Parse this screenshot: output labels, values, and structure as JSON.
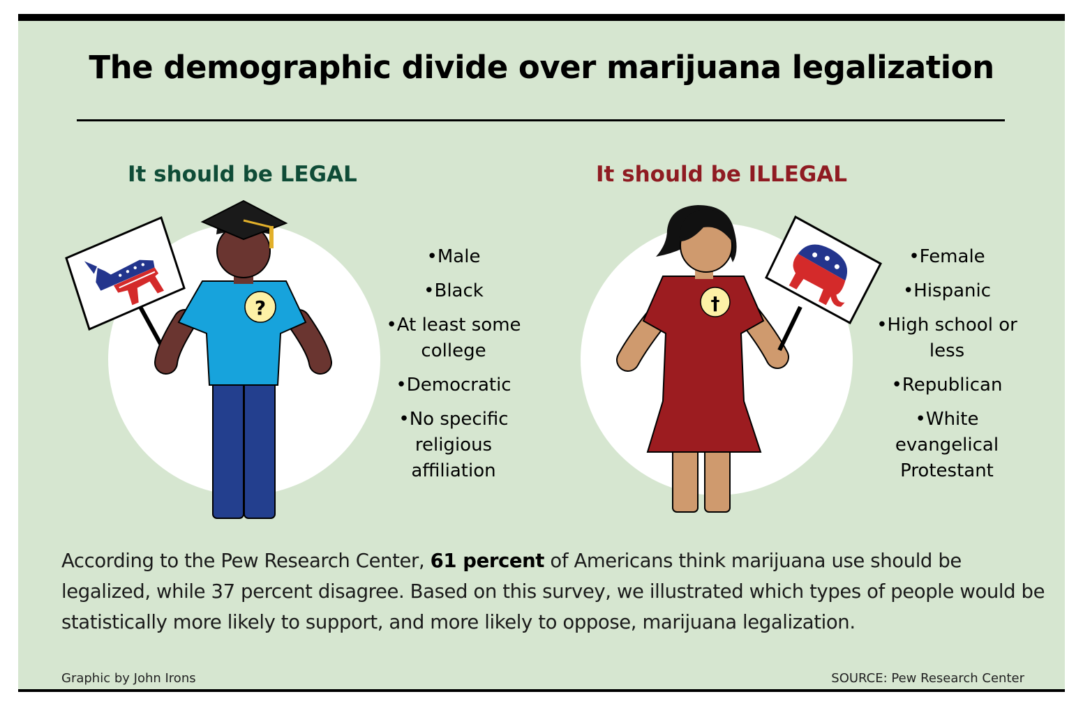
{
  "title": "The demographic divide over marijuana legalization",
  "legal": {
    "heading": "It should be LEGAL",
    "shirt_badge": "?",
    "items": [
      "Male",
      "Black",
      "At least some college",
      "Democratic",
      "No specific religious affiliation"
    ]
  },
  "illegal": {
    "heading": "It should be ILLEGAL",
    "shirt_badge": "†",
    "items": [
      "Female",
      "Hispanic",
      "High school or less",
      "Republican",
      "White evangelical Protestant"
    ]
  },
  "body": {
    "part1": "According to the Pew Research Center, ",
    "highlight": "61 percent",
    "part2": " of Americans think marijuana use should be legalized, while 37 percent disagree. Based on this survey, we illustrated which types of people would be statistically more likely to support, and more likely to oppose, marijuana legalization."
  },
  "credit": "Graphic by John Irons",
  "source": "SOURCE: Pew Research Center",
  "colors": {
    "background": "#d6e6d0",
    "legal_heading": "#0f4c37",
    "illegal_heading": "#8f1b22",
    "man_skin": "#6a3530",
    "man_shirt": "#17a3dc",
    "man_pants": "#233f8e",
    "woman_skin": "#cf9a6e",
    "woman_dress": "#9c1c20",
    "badge": "#fdf1a6"
  },
  "icons": [
    "graduation-cap-icon",
    "democrat-donkey-icon",
    "republican-elephant-icon",
    "question-mark-icon",
    "cross-icon"
  ]
}
